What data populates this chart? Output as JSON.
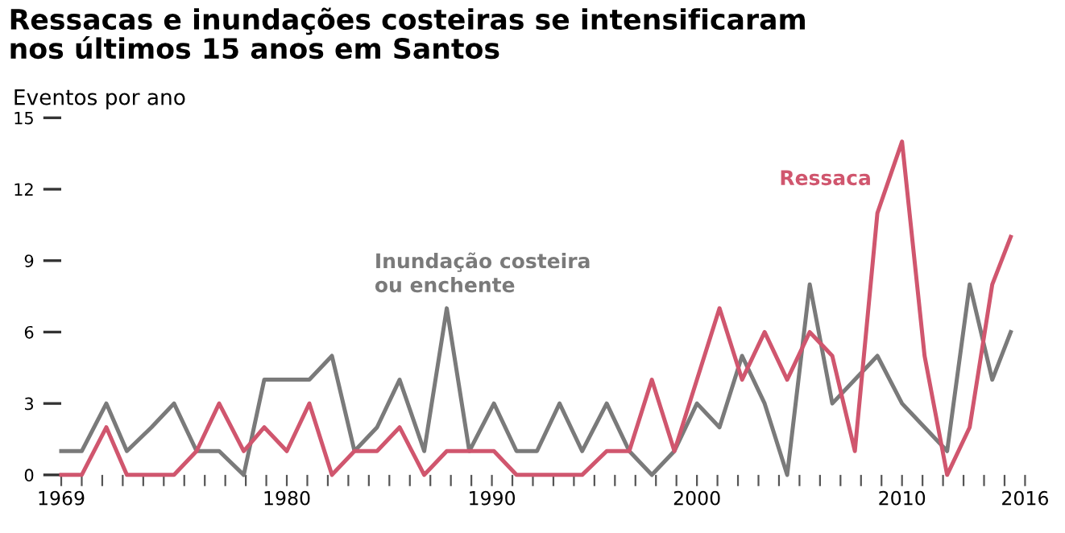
{
  "chart_data": {
    "type": "line",
    "title": "Ressacas e inundações costeiras se intensificaram\nnos últimos 15 anos em Santos",
    "ylabel": "Eventos por ano",
    "x": [
      1969.0,
      1970.0,
      1971.2,
      1972.2,
      1973.4,
      1974.5,
      1975.6,
      1976.7,
      1977.9,
      1978.9,
      1980.0,
      1981.1,
      1982.2,
      1983.3,
      1984.4,
      1985.5,
      1986.7,
      1987.8,
      1988.9,
      1990.1,
      1991.2,
      1992.2,
      1993.3,
      1994.4,
      1995.6,
      1996.7,
      1997.8,
      1998.9,
      2000.0,
      2001.1,
      2002.2,
      2003.3,
      2004.4,
      2005.5,
      2006.6,
      2007.7,
      2008.8,
      2010.0,
      2011.1,
      2012.2,
      2013.3,
      2014.4,
      2015.3
    ],
    "series": [
      {
        "name": "Inundação costeira\nou enchente",
        "color": "#7a7a7a",
        "values": [
          1,
          1,
          3,
          1,
          2,
          3,
          1,
          1,
          0,
          4,
          4,
          4,
          5,
          1,
          2,
          4,
          1,
          7,
          1,
          3,
          1,
          1,
          3,
          1,
          3,
          1,
          0,
          1,
          3,
          2,
          5,
          3,
          0,
          8,
          3,
          4,
          5,
          3,
          2,
          1,
          8,
          4,
          6
        ]
      },
      {
        "name": "Ressaca",
        "color": "#d0566e",
        "values": [
          0,
          0,
          2,
          0,
          0,
          0,
          1,
          3,
          1,
          2,
          1,
          3,
          0,
          1,
          1,
          2,
          0,
          1,
          1,
          1,
          0,
          0,
          0,
          0,
          1,
          1,
          4,
          1,
          4,
          7,
          4,
          6,
          4,
          6,
          5,
          1,
          11,
          14,
          5,
          0,
          2,
          8,
          10
        ]
      }
    ],
    "xlim": [
      1969,
      2016
    ],
    "ylim": [
      0,
      15
    ],
    "yticks": [
      0,
      3,
      6,
      9,
      12,
      15
    ],
    "xticks": [
      {
        "value": 1969,
        "label": "1969"
      },
      {
        "value": 1970,
        "label": null
      },
      {
        "value": 1971,
        "label": null
      },
      {
        "value": 1972,
        "label": null
      },
      {
        "value": 1973,
        "label": null
      },
      {
        "value": 1974,
        "label": null
      },
      {
        "value": 1975,
        "label": null
      },
      {
        "value": 1976,
        "label": null
      },
      {
        "value": 1977,
        "label": null
      },
      {
        "value": 1978,
        "label": null
      },
      {
        "value": 1979,
        "label": null
      },
      {
        "value": 1980,
        "label": "1980"
      },
      {
        "value": 1981,
        "label": null
      },
      {
        "value": 1982,
        "label": null
      },
      {
        "value": 1983,
        "label": null
      },
      {
        "value": 1984,
        "label": null
      },
      {
        "value": 1985,
        "label": null
      },
      {
        "value": 1986,
        "label": null
      },
      {
        "value": 1987,
        "label": null
      },
      {
        "value": 1988,
        "label": null
      },
      {
        "value": 1989,
        "label": null
      },
      {
        "value": 1990,
        "label": "1990"
      },
      {
        "value": 1991,
        "label": null
      },
      {
        "value": 1992,
        "label": null
      },
      {
        "value": 1993,
        "label": null
      },
      {
        "value": 1994,
        "label": null
      },
      {
        "value": 1995,
        "label": null
      },
      {
        "value": 1996,
        "label": null
      },
      {
        "value": 1997,
        "label": null
      },
      {
        "value": 1998,
        "label": null
      },
      {
        "value": 1999,
        "label": null
      },
      {
        "value": 2000,
        "label": "2000"
      },
      {
        "value": 2001,
        "label": null
      },
      {
        "value": 2002,
        "label": null
      },
      {
        "value": 2003,
        "label": null
      },
      {
        "value": 2004,
        "label": null
      },
      {
        "value": 2005,
        "label": null
      },
      {
        "value": 2006,
        "label": null
      },
      {
        "value": 2007,
        "label": null
      },
      {
        "value": 2008,
        "label": null
      },
      {
        "value": 2009,
        "label": null
      },
      {
        "value": 2010,
        "label": "2010"
      },
      {
        "value": 2011,
        "label": null
      },
      {
        "value": 2012,
        "label": null
      },
      {
        "value": 2013,
        "label": null
      },
      {
        "value": 2014,
        "label": null
      },
      {
        "value": 2015,
        "label": null
      },
      {
        "value": 2016,
        "label": "2016"
      }
    ],
    "grid": false,
    "legend": false,
    "marker": "none",
    "line_style": "solid"
  }
}
